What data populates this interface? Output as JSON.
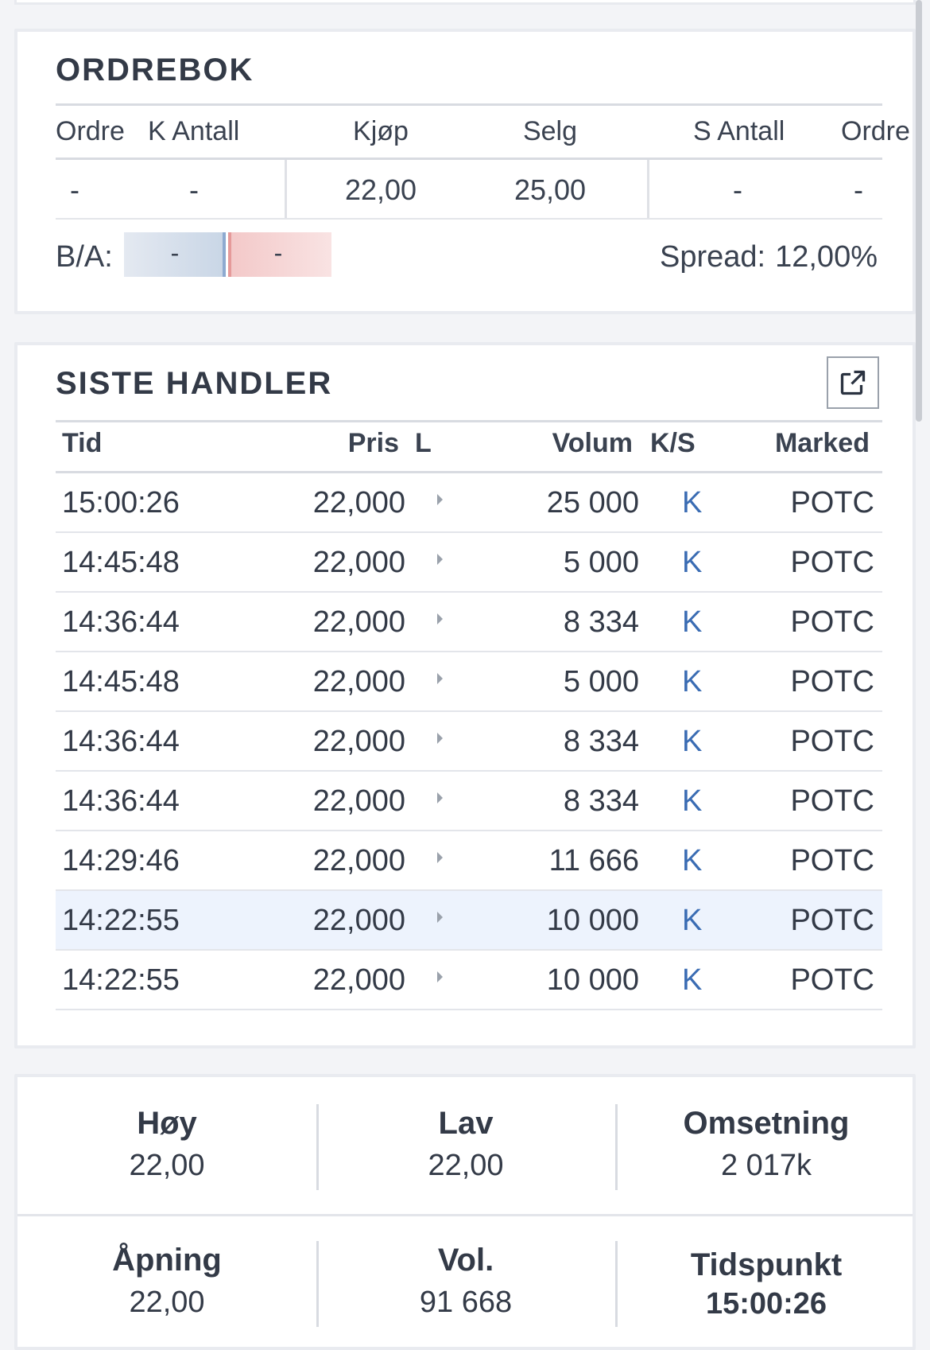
{
  "orderbook": {
    "title": "ORDREBOK",
    "headers": {
      "bid_orders": "Ordre",
      "bid_qty": "K Antall",
      "bid": "Kjøp",
      "ask": "Selg",
      "ask_qty": "S Antall",
      "ask_orders": "Ordre"
    },
    "row": {
      "bid_orders": "-",
      "bid_qty": "-",
      "bid": "22,00",
      "ask": "25,00",
      "ask_qty": "-",
      "ask_orders": "-"
    },
    "ba_label": "B/A:",
    "ba_bid": "-",
    "ba_ask": "-",
    "spread_label": "Spread:",
    "spread_value": "12,00%"
  },
  "trades": {
    "title": "SISTE HANDLER",
    "popout_icon": "external-link-icon",
    "headers": {
      "time": "Tid",
      "price": "Pris",
      "l": "L",
      "volume": "Volum",
      "ks": "K/S",
      "market": "Marked"
    },
    "rows": [
      {
        "time": "15:00:26",
        "price": "22,000",
        "volume": "25 000",
        "ks": "K",
        "market": "POTC"
      },
      {
        "time": "14:45:48",
        "price": "22,000",
        "volume": "5 000",
        "ks": "K",
        "market": "POTC"
      },
      {
        "time": "14:36:44",
        "price": "22,000",
        "volume": "8 334",
        "ks": "K",
        "market": "POTC"
      },
      {
        "time": "14:45:48",
        "price": "22,000",
        "volume": "5 000",
        "ks": "K",
        "market": "POTC"
      },
      {
        "time": "14:36:44",
        "price": "22,000",
        "volume": "8 334",
        "ks": "K",
        "market": "POTC"
      },
      {
        "time": "14:36:44",
        "price": "22,000",
        "volume": "8 334",
        "ks": "K",
        "market": "POTC"
      },
      {
        "time": "14:29:46",
        "price": "22,000",
        "volume": "11 666",
        "ks": "K",
        "market": "POTC"
      },
      {
        "time": "14:22:55",
        "price": "22,000",
        "volume": "10 000",
        "ks": "K",
        "market": "POTC"
      },
      {
        "time": "14:22:55",
        "price": "22,000",
        "volume": "10 000",
        "ks": "K",
        "market": "POTC"
      }
    ]
  },
  "stats": {
    "high": {
      "label": "Høy",
      "value": "22,00"
    },
    "low": {
      "label": "Lav",
      "value": "22,00"
    },
    "turnover": {
      "label": "Omsetning",
      "value": "2 017k"
    },
    "open": {
      "label": "Åpning",
      "value": "22,00"
    },
    "volume": {
      "label": "Vol.",
      "value": "91 668"
    },
    "timestamp": {
      "label": "Tidspunkt",
      "value": "15:00:26"
    }
  },
  "colors": {
    "accent_ks": "#3a6cb3",
    "highlight_row": "#edf3fd",
    "bid_bar": "#c9d6e6",
    "ask_bar": "#f3c9c9"
  }
}
